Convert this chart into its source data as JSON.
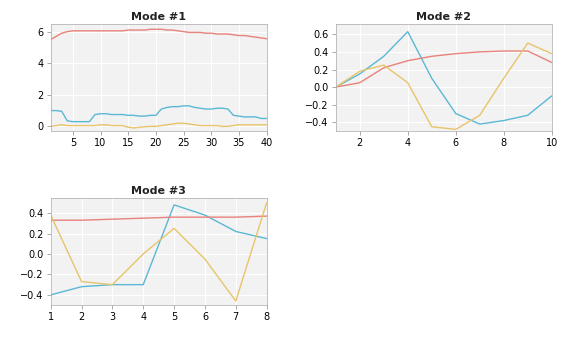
{
  "plot1": {
    "title": "Mode #1",
    "xlim": [
      1,
      40
    ],
    "ylim": [
      -0.3,
      6.5
    ],
    "xticks": [
      5,
      10,
      15,
      20,
      25,
      30,
      35,
      40
    ],
    "yticks": [
      0,
      2,
      4,
      6
    ],
    "red": {
      "x": [
        1,
        2,
        3,
        4,
        5,
        6,
        7,
        8,
        9,
        10,
        11,
        12,
        13,
        14,
        15,
        16,
        17,
        18,
        19,
        20,
        21,
        22,
        23,
        24,
        25,
        26,
        27,
        28,
        29,
        30,
        31,
        32,
        33,
        34,
        35,
        36,
        37,
        38,
        39,
        40
      ],
      "y": [
        5.5,
        5.7,
        5.9,
        6.0,
        6.05,
        6.05,
        6.05,
        6.05,
        6.05,
        6.05,
        6.05,
        6.05,
        6.05,
        6.05,
        6.1,
        6.1,
        6.1,
        6.1,
        6.15,
        6.15,
        6.15,
        6.1,
        6.1,
        6.05,
        6.0,
        5.95,
        5.95,
        5.95,
        5.9,
        5.9,
        5.85,
        5.85,
        5.85,
        5.8,
        5.75,
        5.75,
        5.7,
        5.65,
        5.6,
        5.55
      ]
    },
    "blue": {
      "x": [
        1,
        2,
        3,
        4,
        5,
        6,
        7,
        8,
        9,
        10,
        11,
        12,
        13,
        14,
        15,
        16,
        17,
        18,
        19,
        20,
        21,
        22,
        23,
        24,
        25,
        26,
        27,
        28,
        29,
        30,
        31,
        32,
        33,
        34,
        35,
        36,
        37,
        38,
        39,
        40
      ],
      "y": [
        1.0,
        1.0,
        0.95,
        0.35,
        0.3,
        0.3,
        0.3,
        0.3,
        0.75,
        0.8,
        0.8,
        0.75,
        0.75,
        0.75,
        0.7,
        0.7,
        0.65,
        0.65,
        0.7,
        0.7,
        1.1,
        1.2,
        1.25,
        1.25,
        1.3,
        1.3,
        1.2,
        1.15,
        1.1,
        1.1,
        1.15,
        1.15,
        1.1,
        0.7,
        0.65,
        0.6,
        0.6,
        0.6,
        0.5,
        0.5
      ]
    },
    "yellow": {
      "x": [
        1,
        2,
        3,
        4,
        5,
        6,
        7,
        8,
        9,
        10,
        11,
        12,
        13,
        14,
        15,
        16,
        17,
        18,
        19,
        20,
        21,
        22,
        23,
        24,
        25,
        26,
        27,
        28,
        29,
        30,
        31,
        32,
        33,
        34,
        35,
        36,
        37,
        38,
        39,
        40
      ],
      "y": [
        0.0,
        0.05,
        0.1,
        0.05,
        0.05,
        0.05,
        0.05,
        0.05,
        0.05,
        0.1,
        0.1,
        0.05,
        0.05,
        0.05,
        -0.05,
        -0.1,
        -0.05,
        -0.02,
        0.0,
        0.0,
        0.05,
        0.1,
        0.15,
        0.2,
        0.2,
        0.15,
        0.1,
        0.05,
        0.05,
        0.05,
        0.05,
        0.0,
        0.0,
        0.05,
        0.1,
        0.1,
        0.1,
        0.1,
        0.1,
        0.1
      ]
    }
  },
  "plot2": {
    "title": "Mode #2",
    "xlim": [
      1,
      10
    ],
    "ylim": [
      -0.5,
      0.72
    ],
    "xticks": [
      2,
      4,
      6,
      8,
      10
    ],
    "yticks": [
      -0.4,
      -0.2,
      0,
      0.2,
      0.4,
      0.6
    ],
    "red": {
      "x": [
        1,
        2,
        3,
        4,
        5,
        6,
        7,
        8,
        9,
        10
      ],
      "y": [
        0.0,
        0.05,
        0.22,
        0.3,
        0.35,
        0.38,
        0.4,
        0.41,
        0.41,
        0.28
      ]
    },
    "blue": {
      "x": [
        1,
        2,
        3,
        4,
        5,
        6,
        7,
        8,
        9,
        10
      ],
      "y": [
        0.0,
        0.15,
        0.35,
        0.63,
        0.1,
        -0.3,
        -0.42,
        -0.38,
        -0.32,
        -0.1
      ]
    },
    "yellow": {
      "x": [
        1,
        2,
        3,
        4,
        5,
        6,
        7,
        8,
        9,
        10
      ],
      "y": [
        0.0,
        0.18,
        0.25,
        0.05,
        -0.45,
        -0.48,
        -0.32,
        0.1,
        0.5,
        0.38
      ]
    }
  },
  "plot3": {
    "title": "Mode #3",
    "xlim": [
      1,
      8
    ],
    "ylim": [
      -0.5,
      0.55
    ],
    "xticks": [
      1,
      2,
      3,
      4,
      5,
      6,
      7,
      8
    ],
    "yticks": [
      -0.4,
      -0.2,
      0,
      0.2,
      0.4
    ],
    "red": {
      "x": [
        1,
        2,
        3,
        4,
        5,
        6,
        7,
        8
      ],
      "y": [
        0.33,
        0.33,
        0.34,
        0.35,
        0.36,
        0.36,
        0.36,
        0.37
      ]
    },
    "blue": {
      "x": [
        1,
        2,
        3,
        4,
        5,
        6,
        7,
        8
      ],
      "y": [
        -0.4,
        -0.32,
        -0.3,
        -0.3,
        0.48,
        0.38,
        0.22,
        0.15
      ]
    },
    "yellow": {
      "x": [
        1,
        2,
        3,
        4,
        5,
        6,
        7,
        8
      ],
      "y": [
        0.38,
        -0.27,
        -0.3,
        0.0,
        0.25,
        -0.05,
        -0.46,
        0.5
      ]
    }
  },
  "colors": {
    "red": "#E8827A",
    "blue": "#5BB8D4",
    "yellow": "#E8C46A"
  },
  "bg_axes": "#F2F2F2",
  "background": "#FFFFFF",
  "grid_color": "#FFFFFF",
  "spine_color": "#AAAAAA"
}
